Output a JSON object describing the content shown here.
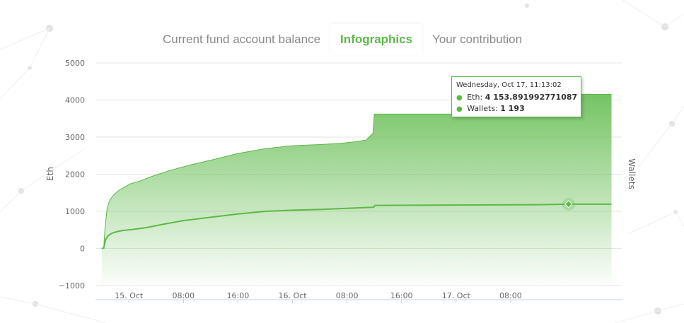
{
  "tabs": [
    {
      "label": "Current fund account balance",
      "active": false
    },
    {
      "label": "Infographics",
      "active": true
    },
    {
      "label": "Your contribution",
      "active": false
    }
  ],
  "colors": {
    "accent": "#5cb947",
    "area_top": "#5cb947",
    "grid": "#e6e6e6",
    "axis_text": "#666666"
  },
  "tooltip": {
    "date": "Wednesday, Oct 17, 11:13:02",
    "eth_label": "Eth:",
    "eth_value": "4 153.891992771087",
    "wallets_label": "Wallets:",
    "wallets_value": "1 193"
  },
  "chart_data": {
    "type": "area",
    "ylabel": "Eth",
    "y2label": "Wallets",
    "ylim": [
      -1000,
      5000
    ],
    "yticks": [
      "5000",
      "4000",
      "3000",
      "2000",
      "1000",
      "0",
      "−1000"
    ],
    "xticks": [
      "15. Oct",
      "08:00",
      "16:00",
      "16. Oct",
      "08:00",
      "16:00",
      "17. Oct",
      "08:00"
    ],
    "xtick_hours": [
      24,
      32,
      40,
      48,
      56,
      64,
      72,
      80
    ],
    "xlim_hours": [
      19.1,
      96.3
    ],
    "grid": true,
    "series": [
      {
        "name": "Eth",
        "type": "area",
        "x_hours": [
          20,
          20.3,
          20.5,
          20.8,
          21.2,
          21.8,
          22.5,
          23.3,
          24.2,
          25.5,
          27.5,
          30,
          33,
          36.5,
          40,
          44,
          48,
          52,
          55,
          57,
          58.8,
          59.2,
          59.8,
          60,
          60.2,
          84,
          88.3,
          88.5,
          92,
          94.8
        ],
        "values": [
          0,
          0,
          550,
          1080,
          1300,
          1450,
          1560,
          1650,
          1740,
          1810,
          1950,
          2100,
          2250,
          2400,
          2560,
          2690,
          2770,
          2800,
          2830,
          2870,
          2920,
          3000,
          3100,
          3620,
          3620,
          3620,
          3620,
          4153.9,
          4153.9,
          4153.9
        ]
      },
      {
        "name": "Wallets",
        "type": "line",
        "x_hours": [
          20,
          20.3,
          20.6,
          21,
          21.5,
          22.2,
          23,
          24.5,
          26.5,
          29,
          32,
          36,
          40,
          44,
          48,
          52,
          56,
          59.9,
          60.1,
          84,
          88.5,
          92,
          94.8
        ],
        "values": [
          0,
          10,
          250,
          350,
          410,
          450,
          480,
          510,
          560,
          650,
          750,
          840,
          930,
          1000,
          1030,
          1050,
          1080,
          1110,
          1160,
          1180,
          1193,
          1193,
          1193
        ]
      }
    ],
    "highlight": {
      "x_hours": 88.5,
      "eth": 4153.9,
      "wallets": 1193
    }
  }
}
